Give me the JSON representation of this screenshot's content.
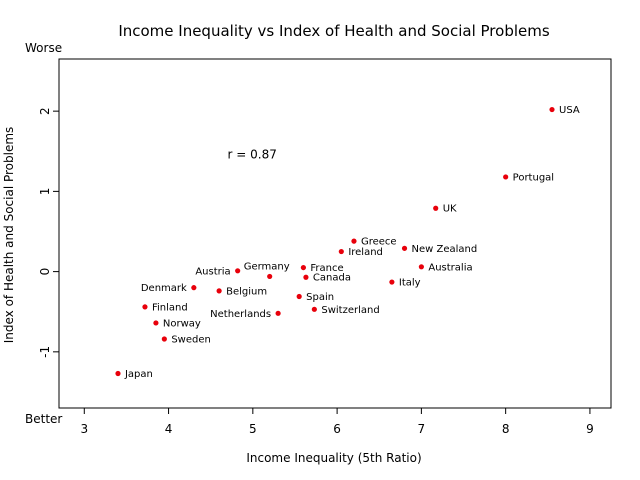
{
  "chart_data": {
    "type": "scatter",
    "title": "Income Inequality vs Index of Health and Social Problems",
    "xlabel": "Income Inequality  (5th Ratio)",
    "ylabel": "Index of Health and Social Problems",
    "xlim": [
      2.7,
      9.25
    ],
    "ylim": [
      -1.7,
      2.65
    ],
    "xticks": [
      3,
      4,
      5,
      6,
      7,
      8,
      9
    ],
    "yticks": [
      -1,
      0,
      1,
      2
    ],
    "grid": false,
    "point_color": "#e8000b",
    "annotation": "r = 0.87",
    "annotation_pos": [
      4.7,
      1.47
    ],
    "y_top_label": "Worse",
    "y_bottom_label": "Better",
    "points": [
      {
        "label": "USA",
        "x": 8.55,
        "y": 2.02,
        "side": "right"
      },
      {
        "label": "Portugal",
        "x": 8.0,
        "y": 1.18,
        "side": "right"
      },
      {
        "label": "UK",
        "x": 7.17,
        "y": 0.79,
        "side": "right"
      },
      {
        "label": "Greece",
        "x": 6.2,
        "y": 0.38,
        "side": "right"
      },
      {
        "label": "Ireland",
        "x": 6.05,
        "y": 0.25,
        "side": "right"
      },
      {
        "label": "New Zealand",
        "x": 6.8,
        "y": 0.29,
        "side": "right"
      },
      {
        "label": "Australia",
        "x": 7.0,
        "y": 0.06,
        "side": "right"
      },
      {
        "label": "Italy",
        "x": 6.65,
        "y": -0.13,
        "side": "right"
      },
      {
        "label": "France",
        "x": 5.6,
        "y": 0.05,
        "side": "right"
      },
      {
        "label": "Canada",
        "x": 5.63,
        "y": -0.07,
        "side": "right"
      },
      {
        "label": "Germany",
        "x": 5.2,
        "y": -0.06,
        "side": "top-left"
      },
      {
        "label": "Austria",
        "x": 4.82,
        "y": 0.01,
        "side": "left"
      },
      {
        "label": "Spain",
        "x": 5.55,
        "y": -0.31,
        "side": "right"
      },
      {
        "label": "Switzerland",
        "x": 5.73,
        "y": -0.47,
        "side": "right"
      },
      {
        "label": "Netherlands",
        "x": 5.3,
        "y": -0.52,
        "side": "left"
      },
      {
        "label": "Denmark",
        "x": 4.3,
        "y": -0.2,
        "side": "left"
      },
      {
        "label": "Belgium",
        "x": 4.6,
        "y": -0.24,
        "side": "right"
      },
      {
        "label": "Finland",
        "x": 3.72,
        "y": -0.44,
        "side": "right"
      },
      {
        "label": "Norway",
        "x": 3.85,
        "y": -0.64,
        "side": "right"
      },
      {
        "label": "Sweden",
        "x": 3.95,
        "y": -0.84,
        "side": "right"
      },
      {
        "label": "Japan",
        "x": 3.4,
        "y": -1.27,
        "side": "right"
      }
    ]
  }
}
